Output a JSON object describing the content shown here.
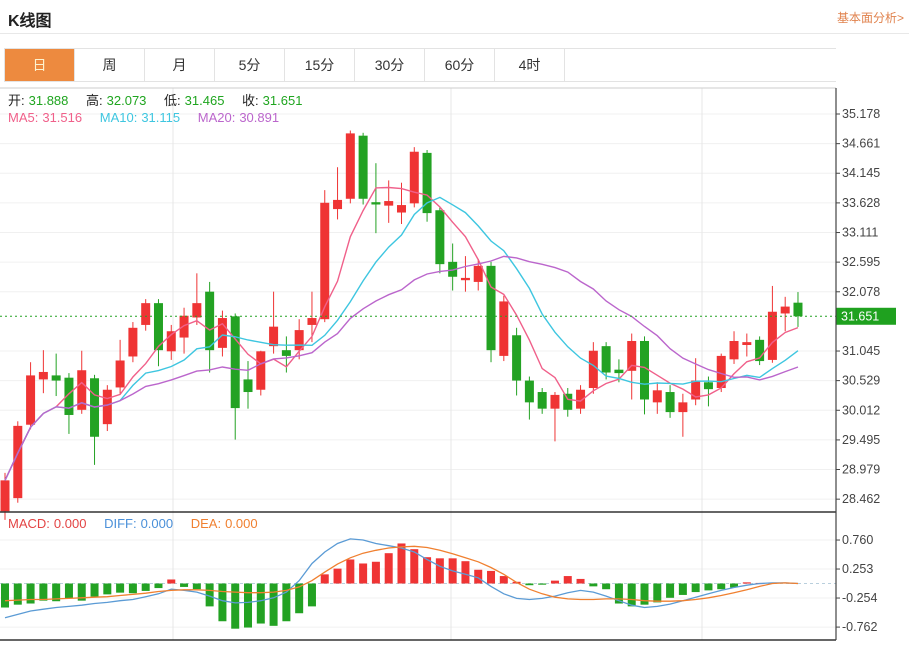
{
  "header": {
    "title": "K线图",
    "link": "基本面分析>"
  },
  "tabs": {
    "items": [
      {
        "label": "日",
        "active": true
      },
      {
        "label": "周",
        "active": false
      },
      {
        "label": "月",
        "active": false
      },
      {
        "label": "5分",
        "active": false
      },
      {
        "label": "15分",
        "active": false
      },
      {
        "label": "30分",
        "active": false
      },
      {
        "label": "60分",
        "active": false
      },
      {
        "label": "4时",
        "active": false
      }
    ]
  },
  "ohlc": {
    "o_label": "开:",
    "o": "31.888",
    "h_label": "高:",
    "h": "32.073",
    "l_label": "低:",
    "l": "31.465",
    "c_label": "收:",
    "c": "31.651"
  },
  "ma_header": {
    "ma5_label": "MA5:",
    "ma5": "31.516",
    "ma10_label": "MA10:",
    "ma10": "31.115",
    "ma20_label": "MA20:",
    "ma20": "30.891"
  },
  "macd_header": {
    "macd_label": "MACD:",
    "macd": "0.000",
    "diff_label": "DIFF:",
    "diff": "0.000",
    "dea_label": "DEA:",
    "dea": "0.000"
  },
  "colors": {
    "up": "#ef3434",
    "down": "#23a223",
    "ma5": "#f0608a",
    "ma10": "#3ec6e0",
    "ma20": "#bb66cc",
    "diff_line": "#5b9bd5",
    "dea_line": "#f08030",
    "price_line": "#23a223",
    "price_badge_bg": "#1fa11f",
    "price_badge_text": "#ffffff",
    "grid": "#f0f0f0",
    "vgrid": "#e7e7e7",
    "axis": "#444444",
    "axis_text": "#444444",
    "zero_dash": "#b9cfdd",
    "tab_active_bg": "#ED8A3F",
    "link": "#e0824d"
  },
  "chart_data": {
    "type": "candlestick+macd",
    "title": "K线图 (daily K-line with MACD)",
    "current_price": "31.651",
    "y_axis_labels": [
      35.178,
      34.661,
      34.145,
      33.628,
      33.111,
      32.595,
      32.078,
      31.045,
      30.529,
      30.012,
      29.495,
      28.979,
      28.462
    ],
    "macd_axis_labels": [
      0.76,
      0.253,
      -0.254,
      -0.762
    ],
    "legend": [
      "MA5",
      "MA10",
      "MA20",
      "MACD",
      "DIFF",
      "DEA"
    ],
    "grid": true,
    "vgrid_x": [
      173,
      451,
      702
    ],
    "candles_ohlc_format": [
      "open",
      "high",
      "low",
      "close"
    ],
    "candles": [
      [
        28.25,
        28.92,
        28.1,
        28.79
      ],
      [
        28.48,
        29.82,
        28.4,
        29.74
      ],
      [
        29.76,
        30.85,
        29.68,
        30.62
      ],
      [
        30.55,
        31.06,
        30.31,
        30.68
      ],
      [
        30.62,
        31.0,
        30.26,
        30.53
      ],
      [
        30.58,
        30.66,
        29.6,
        29.93
      ],
      [
        30.02,
        31.05,
        29.95,
        30.71
      ],
      [
        30.57,
        30.63,
        29.06,
        29.55
      ],
      [
        29.77,
        30.45,
        29.65,
        30.37
      ],
      [
        30.41,
        31.24,
        30.3,
        30.88
      ],
      [
        30.95,
        31.55,
        30.85,
        31.45
      ],
      [
        31.5,
        31.95,
        31.4,
        31.88
      ],
      [
        31.88,
        31.95,
        30.78,
        31.06
      ],
      [
        31.04,
        31.5,
        30.89,
        31.39
      ],
      [
        31.28,
        31.8,
        31.0,
        31.66
      ],
      [
        31.63,
        32.4,
        31.5,
        31.88
      ],
      [
        32.08,
        32.25,
        30.67,
        31.06
      ],
      [
        31.1,
        31.75,
        30.95,
        31.62
      ],
      [
        31.65,
        31.7,
        29.5,
        30.05
      ],
      [
        30.55,
        30.87,
        30.04,
        30.33
      ],
      [
        30.37,
        31.05,
        30.27,
        31.04
      ],
      [
        31.13,
        32.08,
        31.0,
        31.47
      ],
      [
        31.06,
        31.3,
        30.67,
        30.96
      ],
      [
        31.06,
        31.6,
        30.9,
        31.41
      ],
      [
        31.5,
        32.08,
        31.2,
        31.62
      ],
      [
        31.6,
        33.85,
        31.55,
        33.63
      ],
      [
        33.52,
        34.25,
        33.34,
        33.68
      ],
      [
        33.7,
        34.89,
        33.62,
        34.84
      ],
      [
        34.8,
        34.85,
        33.6,
        33.7
      ],
      [
        33.64,
        34.32,
        33.1,
        33.6
      ],
      [
        33.58,
        34.02,
        33.28,
        33.66
      ],
      [
        33.46,
        33.98,
        33.26,
        33.59
      ],
      [
        33.62,
        34.6,
        33.55,
        34.52
      ],
      [
        34.5,
        34.55,
        33.3,
        33.45
      ],
      [
        33.5,
        33.55,
        32.4,
        32.56
      ],
      [
        32.6,
        32.92,
        32.1,
        32.34
      ],
      [
        32.28,
        32.7,
        32.08,
        32.32
      ],
      [
        32.25,
        32.65,
        32.1,
        32.53
      ],
      [
        32.53,
        32.6,
        30.85,
        31.06
      ],
      [
        30.96,
        32.01,
        30.87,
        31.91
      ],
      [
        31.32,
        31.45,
        30.27,
        30.53
      ],
      [
        30.53,
        30.6,
        29.85,
        30.15
      ],
      [
        30.33,
        30.4,
        29.95,
        30.04
      ],
      [
        30.04,
        30.33,
        29.47,
        30.28
      ],
      [
        30.3,
        30.4,
        29.9,
        30.02
      ],
      [
        30.04,
        30.45,
        29.95,
        30.37
      ],
      [
        30.4,
        31.2,
        30.3,
        31.05
      ],
      [
        31.13,
        31.2,
        30.55,
        30.67
      ],
      [
        30.72,
        30.9,
        30.5,
        30.66
      ],
      [
        30.7,
        31.35,
        30.2,
        31.22
      ],
      [
        31.22,
        31.3,
        29.94,
        30.2
      ],
      [
        30.15,
        30.5,
        29.95,
        30.36
      ],
      [
        30.33,
        30.45,
        29.88,
        29.98
      ],
      [
        29.98,
        30.3,
        29.55,
        30.15
      ],
      [
        30.2,
        30.92,
        30.1,
        30.53
      ],
      [
        30.5,
        30.6,
        30.08,
        30.38
      ],
      [
        30.4,
        31.0,
        30.33,
        30.96
      ],
      [
        30.9,
        31.39,
        30.82,
        31.22
      ],
      [
        31.15,
        31.35,
        30.95,
        31.2
      ],
      [
        31.24,
        31.3,
        30.8,
        30.87
      ],
      [
        30.89,
        32.18,
        30.84,
        31.73
      ],
      [
        31.7,
        31.99,
        31.39,
        31.82
      ],
      [
        31.888,
        32.073,
        31.465,
        31.651
      ]
    ],
    "macd_hist": [
      -0.42,
      -0.37,
      -0.35,
      -0.3,
      -0.31,
      -0.26,
      -0.3,
      -0.23,
      -0.19,
      -0.16,
      -0.17,
      -0.13,
      -0.08,
      0.07,
      -0.06,
      -0.1,
      -0.4,
      -0.66,
      -0.79,
      -0.77,
      -0.7,
      -0.74,
      -0.66,
      -0.52,
      -0.4,
      0.16,
      0.26,
      0.42,
      0.35,
      0.38,
      0.53,
      0.7,
      0.6,
      0.46,
      0.44,
      0.44,
      0.39,
      0.24,
      0.22,
      0.13,
      0.03,
      -0.03,
      -0.02,
      0.05,
      0.13,
      0.08,
      -0.05,
      -0.1,
      -0.35,
      -0.4,
      -0.37,
      -0.33,
      -0.25,
      -0.2,
      -0.15,
      -0.12,
      -0.1,
      -0.07,
      0.02,
      0.01,
      0.0,
      0.0,
      0.0
    ],
    "diff_line": [
      -0.6,
      -0.54,
      -0.48,
      -0.45,
      -0.42,
      -0.4,
      -0.38,
      -0.35,
      -0.33,
      -0.3,
      -0.28,
      -0.23,
      -0.18,
      -0.1,
      -0.12,
      -0.15,
      -0.22,
      -0.3,
      -0.34,
      -0.33,
      -0.3,
      -0.25,
      -0.15,
      0.05,
      0.35,
      0.55,
      0.7,
      0.78,
      0.76,
      0.7,
      0.66,
      0.62,
      0.55,
      0.42,
      0.3,
      0.22,
      0.16,
      0.1,
      -0.05,
      -0.18,
      -0.26,
      -0.28,
      -0.26,
      -0.22,
      -0.16,
      -0.12,
      -0.15,
      -0.22,
      -0.3,
      -0.38,
      -0.42,
      -0.4,
      -0.36,
      -0.3,
      -0.24,
      -0.18,
      -0.12,
      -0.07,
      -0.03,
      0.0,
      0.01,
      0.01,
      0.0
    ],
    "dea_line": [
      -0.3,
      -0.29,
      -0.28,
      -0.28,
      -0.27,
      -0.26,
      -0.25,
      -0.24,
      -0.23,
      -0.21,
      -0.19,
      -0.17,
      -0.14,
      -0.12,
      -0.11,
      -0.11,
      -0.12,
      -0.14,
      -0.15,
      -0.16,
      -0.16,
      -0.15,
      -0.12,
      -0.06,
      0.05,
      0.2,
      0.34,
      0.45,
      0.53,
      0.58,
      0.62,
      0.64,
      0.65,
      0.63,
      0.58,
      0.52,
      0.45,
      0.38,
      0.28,
      0.16,
      0.02,
      -0.1,
      -0.18,
      -0.24,
      -0.27,
      -0.28,
      -0.28,
      -0.27,
      -0.27,
      -0.28,
      -0.3,
      -0.31,
      -0.31,
      -0.3,
      -0.28,
      -0.25,
      -0.21,
      -0.16,
      -0.11,
      -0.05,
      0.0,
      0.01,
      0.0
    ]
  }
}
